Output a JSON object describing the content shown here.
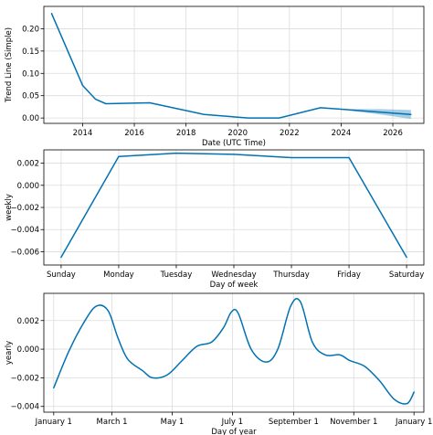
{
  "chart_data": [
    {
      "type": "line",
      "xlabel": "Date (UTC Time)",
      "ylabel": "Trend Line (Simple)",
      "x_axis": "date-year",
      "xlim": [
        2012.5,
        2027.2
      ],
      "ylim": [
        -0.012,
        0.25
      ],
      "xticks": [
        2014,
        2016,
        2018,
        2020,
        2022,
        2024,
        2026
      ],
      "yticks": [
        0.0,
        0.05,
        0.1,
        0.15,
        0.2
      ],
      "ytick_labels": [
        "0.00",
        "0.05",
        "0.10",
        "0.15",
        "0.20"
      ],
      "grid": true,
      "color": "#0072B2",
      "series": [
        {
          "x": [
            2012.8,
            2014.0,
            2014.5,
            2014.9,
            2016.6,
            2018.7,
            2020.4,
            2021.6,
            2023.2,
            2024.4,
            2026.7
          ],
          "values": [
            0.234,
            0.073,
            0.042,
            0.032,
            0.034,
            0.008,
            0.0,
            0.0,
            0.023,
            0.018,
            0.008
          ]
        }
      ],
      "uncertainty": {
        "x": [
          2024.4,
          2025.5,
          2026.7
        ],
        "lower": [
          0.016,
          0.008,
          -0.002
        ],
        "upper": [
          0.02,
          0.02,
          0.018
        ]
      }
    },
    {
      "type": "line",
      "xlabel": "Day of week",
      "ylabel": "weekly",
      "categories": [
        "Sunday",
        "Monday",
        "Tuesday",
        "Wednesday",
        "Thursday",
        "Friday",
        "Saturday"
      ],
      "ylim": [
        -0.0072,
        0.0032
      ],
      "yticks": [
        -0.006,
        -0.004,
        -0.002,
        0.0,
        0.002
      ],
      "ytick_labels": [
        "−0.006",
        "−0.004",
        "−0.002",
        "0.000",
        "0.002"
      ],
      "grid": true,
      "color": "#0072B2",
      "series": [
        {
          "values": [
            -0.0065,
            0.0026,
            0.0029,
            0.0028,
            0.0025,
            0.0025,
            -0.0065
          ]
        }
      ]
    },
    {
      "type": "line",
      "xlabel": "Day of year",
      "ylabel": "yearly",
      "x_axis": "day-of-year",
      "xlim": [
        -10,
        375
      ],
      "ylim": [
        -0.0044,
        0.0039
      ],
      "xticks": [
        0,
        59,
        120,
        181,
        243,
        304,
        365
      ],
      "xtick_labels": [
        "January 1",
        "March 1",
        "May 1",
        "July 1",
        "September 1",
        "November 1",
        "January 1"
      ],
      "yticks": [
        -0.004,
        -0.002,
        0.0,
        0.002
      ],
      "ytick_labels": [
        "−0.004",
        "−0.002",
        "0.000",
        "0.002"
      ],
      "grid": true,
      "color": "#0072B2",
      "series": [
        {
          "x": [
            0,
            15,
            30,
            43,
            55,
            65,
            75,
            90,
            100,
            115,
            130,
            145,
            160,
            172,
            180,
            187,
            200,
            215,
            227,
            240,
            250,
            262,
            275,
            290,
            300,
            315,
            330,
            345,
            358,
            365
          ],
          "values": [
            -0.0027,
            -0.0002,
            0.0018,
            0.003,
            0.0027,
            0.0008,
            -0.0007,
            -0.0015,
            -0.002,
            -0.0018,
            -0.0008,
            0.0002,
            0.0005,
            0.0015,
            0.0026,
            0.0025,
            0.0,
            -0.0009,
            0.0,
            0.003,
            0.0033,
            0.0005,
            -0.0004,
            -0.0004,
            -0.0008,
            -0.0012,
            -0.0022,
            -0.0035,
            -0.0038,
            -0.003
          ]
        }
      ]
    }
  ]
}
